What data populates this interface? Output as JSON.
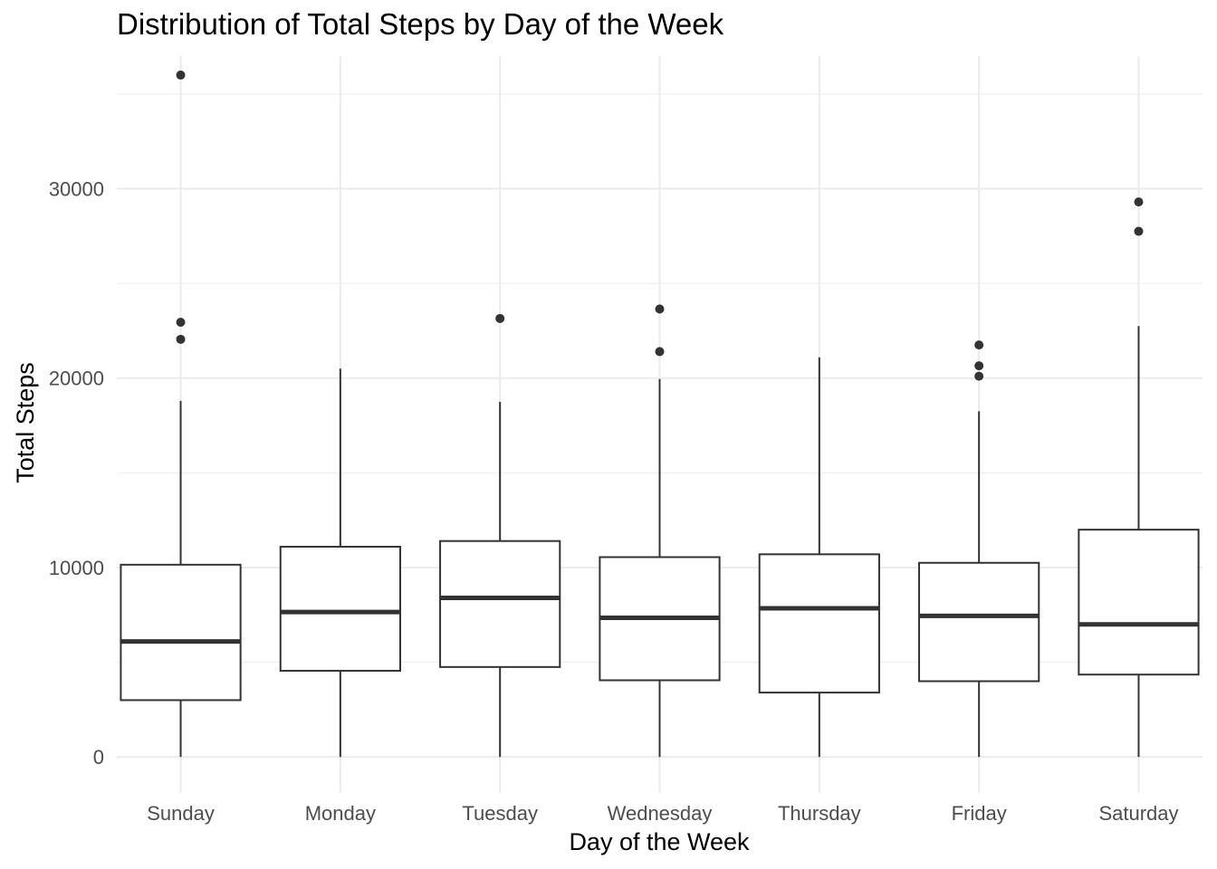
{
  "chart_data": {
    "type": "box",
    "title": "Distribution of Total Steps by Day of the Week",
    "xlabel": "Day of the Week",
    "ylabel": "Total Steps",
    "ylim": [
      -1900,
      37000
    ],
    "yticks": [
      0,
      10000,
      20000,
      30000
    ],
    "grid": true,
    "legend": "none",
    "categories": [
      "Sunday",
      "Monday",
      "Tuesday",
      "Wednesday",
      "Thursday",
      "Friday",
      "Saturday"
    ],
    "boxes": [
      {
        "category": "Sunday",
        "min": 0,
        "q1": 3000,
        "median": 6100,
        "q3": 10150,
        "max": 18800,
        "outliers": [
          22050,
          22950,
          36000
        ]
      },
      {
        "category": "Monday",
        "min": 0,
        "q1": 4550,
        "median": 7650,
        "q3": 11100,
        "max": 20500,
        "outliers": []
      },
      {
        "category": "Tuesday",
        "min": 0,
        "q1": 4750,
        "median": 8400,
        "q3": 11400,
        "max": 18750,
        "outliers": [
          23150
        ]
      },
      {
        "category": "Wednesday",
        "min": 0,
        "q1": 4050,
        "median": 7350,
        "q3": 10550,
        "max": 19950,
        "outliers": [
          21400,
          23650
        ]
      },
      {
        "category": "Thursday",
        "min": 0,
        "q1": 3400,
        "median": 7850,
        "q3": 10700,
        "max": 21100,
        "outliers": []
      },
      {
        "category": "Friday",
        "min": 0,
        "q1": 4000,
        "median": 7450,
        "q3": 10250,
        "max": 18250,
        "outliers": [
          20100,
          20650,
          21750
        ]
      },
      {
        "category": "Saturday",
        "min": 0,
        "q1": 4350,
        "median": 7000,
        "q3": 12000,
        "max": 22750,
        "outliers": [
          27750,
          29300
        ]
      }
    ],
    "colors": {
      "box": "#333333",
      "grid": "#ebebeb",
      "fill": "#ffffff"
    }
  }
}
